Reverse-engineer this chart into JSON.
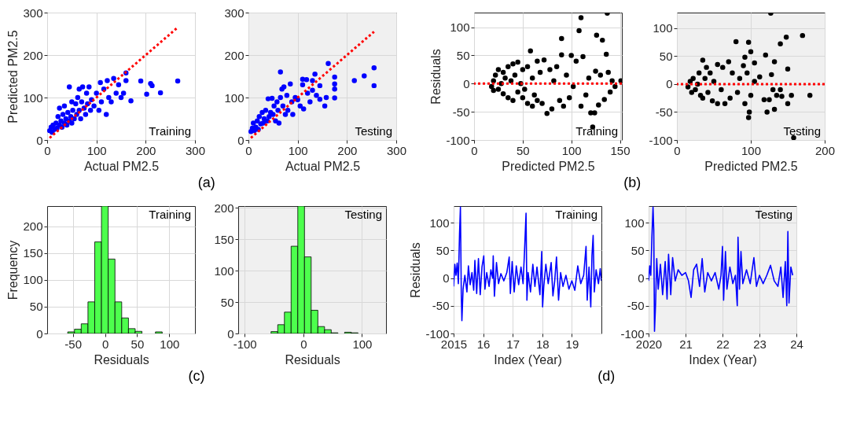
{
  "chart_data": [
    {
      "type": "scatter",
      "xlabel": "Actual PM2.5",
      "ylabel": "Predicted PM2.5",
      "xlim": [
        0,
        300
      ],
      "ylim": [
        0,
        300
      ],
      "xticks": [
        0,
        100,
        200,
        300
      ],
      "yticks": [
        0,
        100,
        200,
        300
      ],
      "grid": true,
      "annotations": [
        "Training",
        "(a)"
      ],
      "series": [
        {
          "type": "scatter",
          "marker": "circle",
          "color": "#0000ff",
          "x": [
            5,
            8,
            10,
            12,
            15,
            18,
            20,
            22,
            25,
            25,
            28,
            30,
            32,
            35,
            35,
            38,
            40,
            42,
            45,
            45,
            48,
            50,
            50,
            52,
            55,
            58,
            60,
            62,
            65,
            65,
            68,
            70,
            72,
            75,
            78,
            80,
            82,
            85,
            88,
            90,
            95,
            100,
            105,
            108,
            110,
            115,
            120,
            122,
            125,
            130,
            135,
            140,
            145,
            150,
            155,
            160,
            160,
            170,
            190,
            202,
            210,
            213,
            230,
            265
          ],
          "values": [
            22,
            30,
            18,
            35,
            25,
            40,
            28,
            55,
            35,
            75,
            45,
            30,
            60,
            40,
            80,
            50,
            35,
            65,
            45,
            125,
            55,
            40,
            90,
            70,
            50,
            85,
            60,
            100,
            70,
            120,
            50,
            90,
            125,
            75,
            60,
            110,
            85,
            125,
            70,
            95,
            80,
            110,
            70,
            135,
            90,
            120,
            60,
            140,
            100,
            90,
            145,
            110,
            130,
            100,
            110,
            158,
            140,
            92,
            139,
            108,
            133,
            128,
            111,
            139
          ]
        },
        {
          "type": "line",
          "color": "#ff0000",
          "line_style": "dotted",
          "x": [
            5,
            265
          ],
          "values": [
            5,
            265
          ]
        }
      ]
    },
    {
      "type": "scatter",
      "xlabel": "Actual PM2.5",
      "xlim": [
        0,
        300
      ],
      "ylim": [
        0,
        300
      ],
      "xticks": [
        0,
        100,
        200,
        300
      ],
      "yticks": [
        0,
        100,
        200,
        300
      ],
      "grid": true,
      "annotations": [
        "Testing"
      ],
      "series": [
        {
          "type": "scatter",
          "marker": "circle",
          "color": "#0000ff",
          "x": [
            5,
            8,
            10,
            12,
            15,
            18,
            20,
            22,
            25,
            28,
            30,
            32,
            35,
            38,
            40,
            42,
            45,
            48,
            50,
            52,
            55,
            58,
            60,
            62,
            65,
            65,
            68,
            70,
            72,
            75,
            78,
            80,
            85,
            88,
            90,
            95,
            100,
            105,
            110,
            110,
            112,
            118,
            120,
            125,
            130,
            130,
            135,
            138,
            145,
            145,
            155,
            158,
            162,
            175,
            175,
            175,
            175,
            215,
            235,
            255,
            255
          ],
          "values": [
            20,
            28,
            40,
            22,
            30,
            45,
            25,
            55,
            38,
            65,
            40,
            50,
            70,
            45,
            97,
            55,
            65,
            98,
            60,
            80,
            45,
            90,
            70,
            40,
            160,
            100,
            120,
            80,
            125,
            60,
            105,
            70,
            132,
            90,
            60,
            100,
            95,
            80,
            143,
            130,
            73,
            142,
            110,
            90,
            140,
            117,
            155,
            105,
            128,
            96,
            80,
            100,
            180,
            148,
            132,
            120,
            99,
            140,
            151,
            170,
            128
          ]
        },
        {
          "type": "line",
          "color": "#ff0000",
          "line_style": "dotted",
          "x": [
            5,
            255
          ],
          "values": [
            5,
            255
          ]
        }
      ]
    },
    {
      "type": "scatter",
      "xlabel": "Predicted PM2.5",
      "ylabel": "Residuals",
      "xlim": [
        0,
        152
      ],
      "ylim": [
        -100,
        126
      ],
      "xticks": [
        0,
        50,
        100,
        150
      ],
      "yticks": [
        -100,
        -50,
        0,
        50,
        100
      ],
      "grid": true,
      "marker": "circle",
      "annotations": [
        "Training",
        "(b)"
      ],
      "ref_lines": [
        {
          "axis": "y",
          "value": 0,
          "color": "#ff0000",
          "line_style": "dotted"
        }
      ],
      "series": [
        {
          "type": "scatter",
          "color": "#000000",
          "x": [
            18,
            20,
            20,
            22,
            25,
            25,
            28,
            30,
            30,
            32,
            35,
            35,
            38,
            40,
            40,
            42,
            45,
            45,
            48,
            50,
            50,
            52,
            55,
            55,
            58,
            60,
            60,
            62,
            65,
            65,
            68,
            70,
            72,
            75,
            78,
            80,
            82,
            85,
            88,
            90,
            90,
            92,
            95,
            98,
            100,
            102,
            105,
            108,
            110,
            110,
            112,
            115,
            118,
            120,
            122,
            124,
            125,
            126,
            128,
            130,
            132,
            134,
            136,
            137,
            138,
            140,
            142,
            145,
            151
          ],
          "values": [
            -5,
            5,
            -12,
            15,
            -10,
            25,
            0,
            -18,
            20,
            10,
            -25,
            30,
            5,
            -30,
            35,
            15,
            -15,
            38,
            0,
            25,
            -25,
            -10,
            30,
            -35,
            58,
            -40,
            10,
            -20,
            40,
            -30,
            20,
            -35,
            42,
            -53,
            25,
            -45,
            5,
            30,
            -30,
            80,
            51,
            -40,
            15,
            -25,
            50,
            -5,
            40,
            94,
            117,
            -40,
            48,
            -20,
            10,
            -52,
            -77,
            -52,
            22,
            86,
            -38,
            15,
            77,
            -28,
            52,
            125,
            20,
            -15,
            5,
            -5,
            5
          ]
        }
      ]
    },
    {
      "type": "scatter",
      "xlabel": "Predicted PM2.5",
      "xlim": [
        0,
        200
      ],
      "ylim": [
        -100,
        128
      ],
      "xticks": [
        0,
        100,
        200
      ],
      "yticks": [
        -100,
        -50,
        0,
        50,
        100
      ],
      "grid": true,
      "marker": "circle",
      "annotations": [
        "Testing"
      ],
      "ref_lines": [
        {
          "axis": "y",
          "value": 0,
          "color": "#ff0000",
          "line_style": "dotted"
        }
      ],
      "series": [
        {
          "type": "scatter",
          "color": "#000000",
          "x": [
            15,
            18,
            20,
            22,
            25,
            28,
            30,
            32,
            35,
            35,
            38,
            40,
            42,
            45,
            48,
            50,
            55,
            55,
            60,
            62,
            65,
            70,
            72,
            75,
            80,
            82,
            85,
            90,
            92,
            92,
            95,
            97,
            97,
            98,
            100,
            100,
            105,
            105,
            112,
            118,
            120,
            122,
            125,
            127,
            128,
            130,
            132,
            132,
            135,
            140,
            140,
            142,
            148,
            150,
            150,
            155,
            158,
            170,
            180
          ],
          "values": [
            -5,
            5,
            -15,
            10,
            -10,
            0,
            20,
            -20,
            43,
            -25,
            10,
            30,
            -15,
            20,
            -30,
            5,
            35,
            -35,
            -10,
            30,
            -35,
            40,
            -25,
            20,
            76,
            -15,
            10,
            33,
            48,
            -35,
            20,
            75,
            -60,
            -50,
            58,
            -20,
            38,
            5,
            13,
            -28,
            52,
            -50,
            -28,
            127,
            17,
            -10,
            40,
            -45,
            -20,
            72,
            -10,
            -22,
            84,
            27,
            -35,
            -20,
            -96,
            87,
            -20
          ]
        }
      ]
    },
    {
      "type": "histogram",
      "xlabel": "Residuals",
      "ylabel": "Frequency",
      "xlim": [
        -90,
        140
      ],
      "ylim": [
        0,
        238
      ],
      "xticks": [
        -50,
        0,
        50,
        100
      ],
      "yticks": [
        0,
        50,
        100,
        150,
        200
      ],
      "grid": true,
      "color": "#4dff4d",
      "annotations": [
        "Training",
        "(c)"
      ],
      "bins": [
        -58,
        -47.5,
        -37,
        -26.5,
        -16,
        -5.5,
        5,
        15.5,
        26,
        36.5,
        47,
        57.5,
        68,
        78.5,
        89
      ],
      "values": [
        3,
        8,
        18,
        59,
        171,
        238,
        139,
        59,
        29,
        9,
        4,
        0,
        0,
        3
      ]
    },
    {
      "type": "histogram",
      "xlabel": "Residuals",
      "xlim": [
        -111,
        141
      ],
      "ylim": [
        0,
        203
      ],
      "xticks": [
        -100,
        0,
        100
      ],
      "yticks": [
        0,
        50,
        100,
        150,
        200
      ],
      "grid": true,
      "color": "#4dff4d",
      "annotations": [
        "Testing"
      ],
      "bins": [
        -55,
        -43.6,
        -32.2,
        -20.8,
        -9.4,
        2,
        13.4,
        24.8,
        36.2,
        47.6,
        59,
        70.4,
        81.8,
        93.2
      ],
      "values": [
        3,
        14,
        34,
        139,
        203,
        122,
        37,
        11,
        6,
        1,
        0,
        2,
        1
      ]
    },
    {
      "type": "line",
      "xlabel": "Index (Year)",
      "ylabel": "Residuals",
      "xlim": [
        2015,
        2020
      ],
      "ylim": [
        -100,
        130
      ],
      "xticks": [
        {
          "value": 2015,
          "label": "2015"
        },
        {
          "value": 2016,
          "label": "16"
        },
        {
          "value": 2017,
          "label": "17"
        },
        {
          "value": 2018,
          "label": "18"
        },
        {
          "value": 2019,
          "label": "19"
        }
      ],
      "yticks": [
        -100,
        -50,
        0,
        50,
        100
      ],
      "grid": true,
      "annotations": [
        "Training",
        "(d)"
      ],
      "series": [
        {
          "color": "#0000ff",
          "x": [
            2015.0,
            2015.04,
            2015.08,
            2015.12,
            2015.16,
            2015.2,
            2015.23,
            2015.26,
            2015.28,
            2015.32,
            2015.38,
            2015.45,
            2015.5,
            2015.56,
            2015.62,
            2015.68,
            2015.72,
            2015.78,
            2015.84,
            2015.9,
            2015.96,
            2016.02,
            2016.06,
            2016.12,
            2016.2,
            2016.26,
            2016.32,
            2016.34,
            2016.38,
            2016.45,
            2016.52,
            2016.6,
            2016.7,
            2016.8,
            2016.88,
            2016.92,
            2016.98,
            2017.05,
            2017.12,
            2017.2,
            2017.28,
            2017.35,
            2017.4,
            2017.45,
            2017.48,
            2017.52,
            2017.6,
            2017.68,
            2017.75,
            2017.82,
            2017.92,
            2017.98,
            2018.01,
            2018.05,
            2018.12,
            2018.2,
            2018.3,
            2018.36,
            2018.42,
            2018.48,
            2018.55,
            2018.62,
            2018.7,
            2018.8,
            2018.9,
            2019.0,
            2019.1,
            2019.2,
            2019.3,
            2019.4,
            2019.48,
            2019.52,
            2019.58,
            2019.64,
            2019.68,
            2019.72,
            2019.76,
            2019.82,
            2019.9,
            2019.96,
            2020.0
          ],
          "values": [
            -15,
            25,
            5,
            27,
            -10,
            80,
            128,
            -30,
            -77,
            -20,
            5,
            -25,
            22,
            -12,
            10,
            -22,
            32,
            -28,
            35,
            -30,
            20,
            40,
            -20,
            10,
            -15,
            15,
            0,
            40,
            -33,
            28,
            -10,
            8,
            -5,
            10,
            38,
            -28,
            30,
            -25,
            22,
            -12,
            20,
            -10,
            50,
            117,
            -40,
            10,
            -25,
            25,
            -15,
            20,
            -30,
            48,
            -52,
            -15,
            25,
            -10,
            28,
            -32,
            -5,
            38,
            -40,
            10,
            -15,
            5,
            -20,
            -5,
            -22,
            22,
            -10,
            5,
            57,
            -40,
            20,
            -52,
            40,
            77,
            -25,
            15,
            -10,
            17,
            -5
          ]
        }
      ]
    },
    {
      "type": "line",
      "xlabel": "Index (Year)",
      "xlim": [
        2020,
        2024
      ],
      "ylim": [
        -100,
        130
      ],
      "xticks": [
        {
          "value": 2020,
          "label": "2020"
        },
        {
          "value": 2021,
          "label": "21"
        },
        {
          "value": 2022,
          "label": "22"
        },
        {
          "value": 2023,
          "label": "23"
        },
        {
          "value": 2024,
          "label": "24"
        }
      ],
      "yticks": [
        -100,
        -50,
        0,
        50,
        100
      ],
      "grid": true,
      "annotations": [
        "Testing"
      ],
      "series": [
        {
          "color": "#0000ff",
          "x": [
            2020.0,
            2020.03,
            2020.06,
            2020.09,
            2020.12,
            2020.14,
            2020.16,
            2020.19,
            2020.22,
            2020.26,
            2020.32,
            2020.38,
            2020.45,
            2020.5,
            2020.54,
            2020.6,
            2020.65,
            2020.72,
            2020.8,
            2020.9,
            2021.0,
            2021.08,
            2021.15,
            2021.22,
            2021.3,
            2021.38,
            2021.45,
            2021.52,
            2021.6,
            2021.7,
            2021.8,
            2021.9,
            2021.96,
            2022.0,
            2022.03,
            2022.08,
            2022.12,
            2022.2,
            2022.28,
            2022.35,
            2022.4,
            2022.42,
            2022.46,
            2022.5,
            2022.55,
            2022.65,
            2022.75,
            2022.85,
            2022.92,
            2023.0,
            2023.1,
            2023.2,
            2023.3,
            2023.4,
            2023.5,
            2023.58,
            2023.64,
            2023.7,
            2023.74,
            2023.77,
            2023.8,
            2023.85,
            2023.9
          ],
          "values": [
            -5,
            22,
            5,
            75,
            128,
            87,
            -96,
            -45,
            35,
            -20,
            25,
            -30,
            30,
            -38,
            43,
            -30,
            37,
            -5,
            15,
            5,
            10,
            -5,
            -35,
            15,
            25,
            -15,
            35,
            -25,
            10,
            -5,
            10,
            -20,
            5,
            57,
            -40,
            48,
            -20,
            20,
            -10,
            5,
            -50,
            74,
            -20,
            48,
            -10,
            15,
            -10,
            37,
            -15,
            5,
            -10,
            5,
            23,
            -5,
            -15,
            20,
            -35,
            30,
            -50,
            84,
            -45,
            20,
            5
          ]
        }
      ]
    }
  ]
}
